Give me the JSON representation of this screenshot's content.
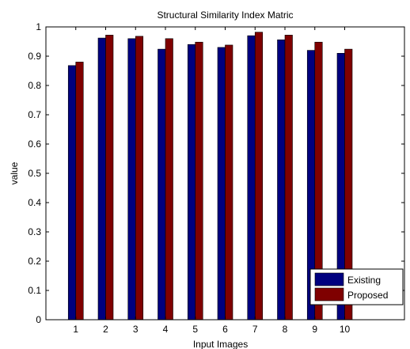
{
  "chart_data": {
    "type": "bar",
    "title": "Structural Similarity Index Matric",
    "xlabel": "Input Images",
    "ylabel": "value",
    "categories": [
      "1",
      "2",
      "3",
      "4",
      "5",
      "6",
      "7",
      "8",
      "9",
      "10"
    ],
    "series": [
      {
        "name": "Existing",
        "color": "#00007f",
        "values": [
          0.868,
          0.962,
          0.96,
          0.924,
          0.94,
          0.93,
          0.97,
          0.956,
          0.92,
          0.91
        ]
      },
      {
        "name": "Proposed",
        "color": "#7f0000",
        "values": [
          0.88,
          0.972,
          0.968,
          0.96,
          0.948,
          0.938,
          0.982,
          0.972,
          0.948,
          0.924
        ]
      }
    ],
    "ylim": [
      0,
      1
    ],
    "xlim": [
      0,
      12
    ],
    "yticks": [
      "0",
      "0.1",
      "0.2",
      "0.3",
      "0.4",
      "0.5",
      "0.6",
      "0.7",
      "0.8",
      "0.9",
      "1"
    ],
    "grid": false,
    "legend_position": "bottom-right"
  }
}
